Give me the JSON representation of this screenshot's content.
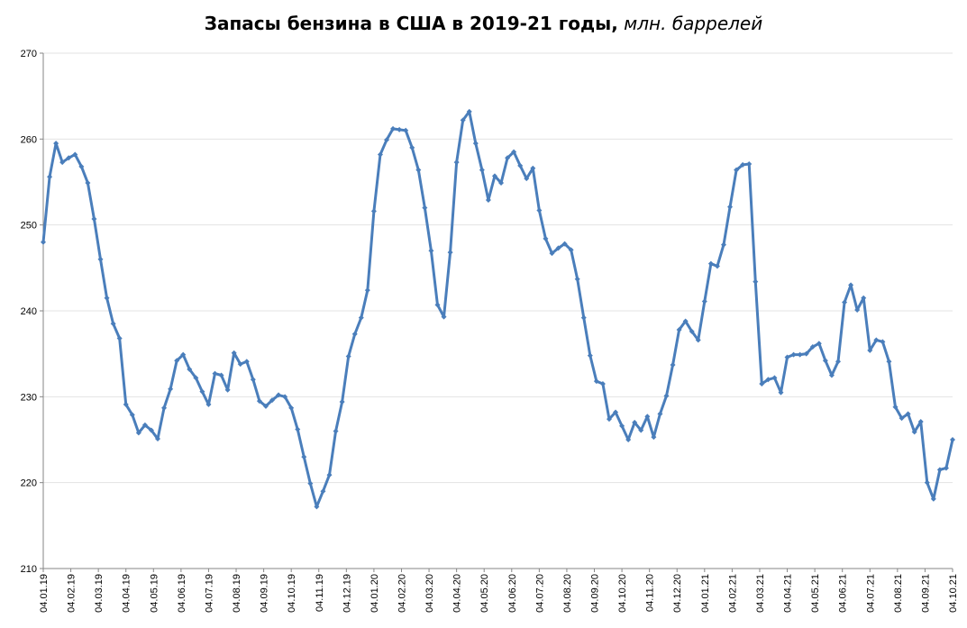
{
  "chart_data": {
    "type": "line",
    "title": "Запасы бензина в США в 2019-21 годы,",
    "title_unit": "млн. баррелей",
    "ylim": [
      210,
      270
    ],
    "yticks": [
      210,
      220,
      230,
      240,
      250,
      260,
      270
    ],
    "grid": true,
    "color": "#4a7ebb",
    "marker": "diamond",
    "xtick_labels": [
      "04.01.19",
      "04.02.19",
      "04.03.19",
      "04.04.19",
      "04.05.19",
      "04.06.19",
      "04.07.19",
      "04.08.19",
      "04.09.19",
      "04.10.19",
      "04.11.19",
      "04.12.19",
      "04.01.20",
      "04.02.20",
      "04.03.20",
      "04.04.20",
      "04.05.20",
      "04.06.20",
      "04.07.20",
      "04.08.20",
      "04.09.20",
      "04.10.20",
      "04.11.20",
      "04.12.20",
      "04.01.21",
      "04.02.21",
      "04.03.21",
      "04.04.21",
      "04.05.21",
      "04.06.21",
      "04.07.21",
      "04.08.21",
      "04.09.21",
      "04.10.21"
    ],
    "values": [
      248.0,
      255.6,
      259.5,
      257.3,
      257.8,
      258.2,
      256.8,
      254.9,
      250.7,
      246.0,
      241.5,
      238.5,
      236.8,
      229.1,
      227.9,
      225.8,
      226.7,
      226.1,
      225.1,
      228.7,
      230.9,
      234.2,
      234.9,
      233.2,
      232.2,
      230.6,
      229.1,
      232.7,
      232.5,
      230.8,
      235.1,
      233.8,
      234.1,
      232.0,
      229.5,
      228.9,
      229.6,
      230.2,
      230.0,
      228.7,
      226.2,
      223.0,
      219.9,
      217.2,
      219.0,
      220.9,
      226.0,
      229.4,
      234.7,
      237.3,
      239.2,
      242.4,
      251.6,
      258.2,
      259.9,
      261.2,
      261.1,
      261.0,
      259.0,
      256.4,
      252.0,
      247.0,
      240.7,
      239.3,
      246.8,
      257.3,
      262.2,
      263.2,
      259.5,
      256.4,
      252.9,
      255.7,
      254.9,
      257.8,
      258.5,
      256.9,
      255.4,
      256.6,
      251.7,
      248.4,
      246.7,
      247.3,
      247.8,
      247.1,
      243.7,
      239.2,
      234.8,
      231.8,
      231.5,
      227.4,
      228.2,
      226.6,
      225.0,
      227.0,
      226.1,
      227.7,
      225.3,
      228.0,
      230.1,
      233.7,
      237.8,
      238.8,
      237.6,
      236.6,
      241.1,
      245.5,
      245.2,
      247.7,
      252.1,
      256.4,
      257.0,
      257.1,
      243.4,
      231.5,
      232.0,
      232.2,
      230.5,
      234.6,
      234.9,
      234.9,
      235.0,
      235.8,
      236.2,
      234.2,
      232.5,
      234.1,
      241.0,
      243.0,
      240.1,
      241.5,
      235.4,
      236.6,
      236.4,
      234.1,
      228.8,
      227.5,
      228.0,
      225.9,
      227.1,
      220.0,
      218.1,
      221.5,
      221.7,
      225.0
    ]
  }
}
